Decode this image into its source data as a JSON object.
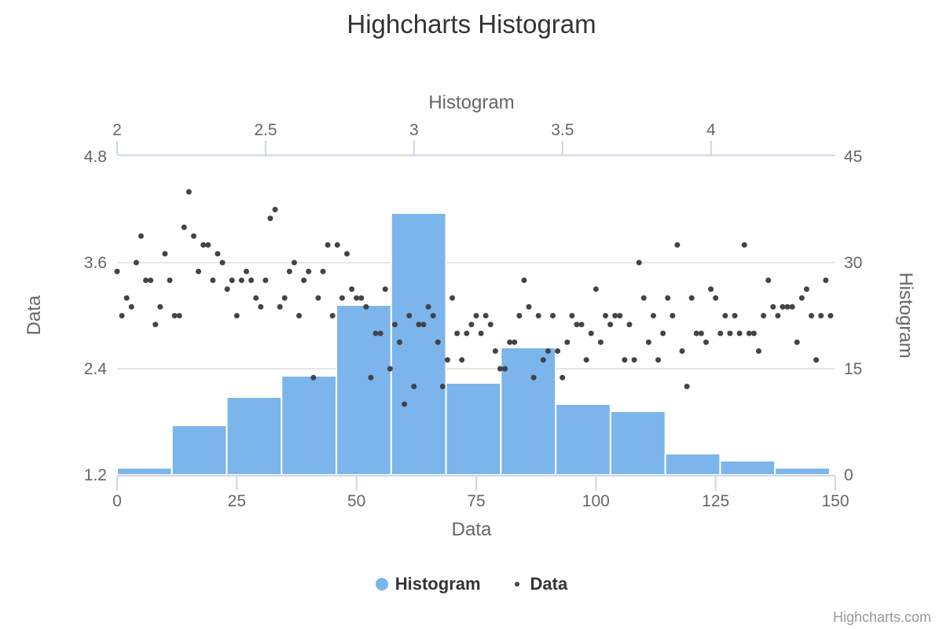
{
  "title": "Highcharts Histogram",
  "credits_label": "Highcharts.com",
  "legend": {
    "items": [
      {
        "label": "Histogram",
        "marker": "large-circle",
        "color": "#7cb5ec"
      },
      {
        "label": "Data",
        "marker": "small-dot",
        "color": "#434348"
      }
    ]
  },
  "axes": {
    "top": {
      "title": "Histogram",
      "tick_labels": [
        "2",
        "2.5",
        "3",
        "3.5",
        "4"
      ]
    },
    "bottom": {
      "title": "Data",
      "tick_labels": [
        "0",
        "25",
        "50",
        "75",
        "100",
        "125",
        "150"
      ]
    },
    "left": {
      "title": "Data",
      "tick_labels": [
        "4.8",
        "3.6",
        "2.4",
        "1.2"
      ]
    },
    "right": {
      "title": "Histogram",
      "tick_labels": [
        "45",
        "30",
        "15",
        "0"
      ]
    }
  },
  "colors": {
    "bar_fill": "#7cb5ec",
    "bar_border": "#ffffff",
    "point_fill": "#434348",
    "axis_line": "#ccd6eb",
    "grid_line": "#e6e6e6",
    "tick_label": "#666666",
    "axis_title": "#666666",
    "chart_title": "#333333",
    "legend_text": "#333333",
    "credits_text": "#999999"
  },
  "chart_data": {
    "type": "bar",
    "title": "Highcharts Histogram",
    "grid": "horizontal-only",
    "legend_position": "bottom-center",
    "axis_ranges": {
      "top_x": [
        2,
        4.42
      ],
      "bottom_x": [
        0,
        150
      ],
      "left_y": [
        1.2,
        4.8
      ],
      "right_y": [
        0,
        45
      ]
    },
    "series": [
      {
        "name": "Histogram",
        "type": "histogram-bar",
        "color": "#7cb5ec",
        "uses_axes": "top x (bin values), right y (counts)",
        "bin_start": 2.0,
        "bin_width": 0.1846,
        "bin_counts": [
          1,
          7,
          11,
          14,
          24,
          37,
          13,
          18,
          10,
          9,
          3,
          2,
          1
        ]
      },
      {
        "name": "Data",
        "type": "scatter",
        "color": "#434348",
        "uses_axes": "bottom x (index), left y (value)",
        "values": [
          3.5,
          3,
          3.2,
          3.1,
          3.6,
          3.9,
          3.4,
          3.4,
          2.9,
          3.1,
          3.7,
          3.4,
          3,
          3,
          4,
          4.4,
          3.9,
          3.5,
          3.8,
          3.8,
          3.4,
          3.7,
          3.6,
          3.3,
          3.4,
          3,
          3.4,
          3.5,
          3.4,
          3.2,
          3.1,
          3.4,
          4.1,
          4.2,
          3.1,
          3.2,
          3.5,
          3.6,
          3,
          3.4,
          3.5,
          2.3,
          3.2,
          3.5,
          3.8,
          3,
          3.8,
          3.2,
          3.7,
          3.3,
          3.2,
          3.2,
          3.1,
          2.3,
          2.8,
          2.8,
          3.3,
          2.4,
          2.9,
          2.7,
          2,
          3,
          2.2,
          2.9,
          2.9,
          3.1,
          3,
          2.7,
          2.2,
          2.5,
          3.2,
          2.8,
          2.5,
          2.8,
          2.9,
          3,
          2.8,
          3,
          2.9,
          2.6,
          2.4,
          2.4,
          2.7,
          2.7,
          3,
          3.4,
          3.1,
          2.3,
          3,
          2.5,
          2.6,
          3,
          2.6,
          2.3,
          2.7,
          3,
          2.9,
          2.9,
          2.5,
          2.8,
          3.3,
          2.7,
          3,
          2.9,
          3,
          3,
          2.5,
          2.9,
          2.5,
          3.6,
          3.2,
          2.7,
          3,
          2.5,
          2.8,
          3.2,
          3,
          3.8,
          2.6,
          2.2,
          3.2,
          2.8,
          2.8,
          2.7,
          3.3,
          3.2,
          2.8,
          3,
          2.8,
          3,
          2.8,
          3.8,
          2.8,
          2.8,
          2.6,
          3,
          3.4,
          3.1,
          3,
          3.1,
          3.1,
          3.1,
          2.7,
          3.2,
          3.3,
          3,
          2.5,
          3,
          3.4,
          3
        ]
      }
    ]
  }
}
